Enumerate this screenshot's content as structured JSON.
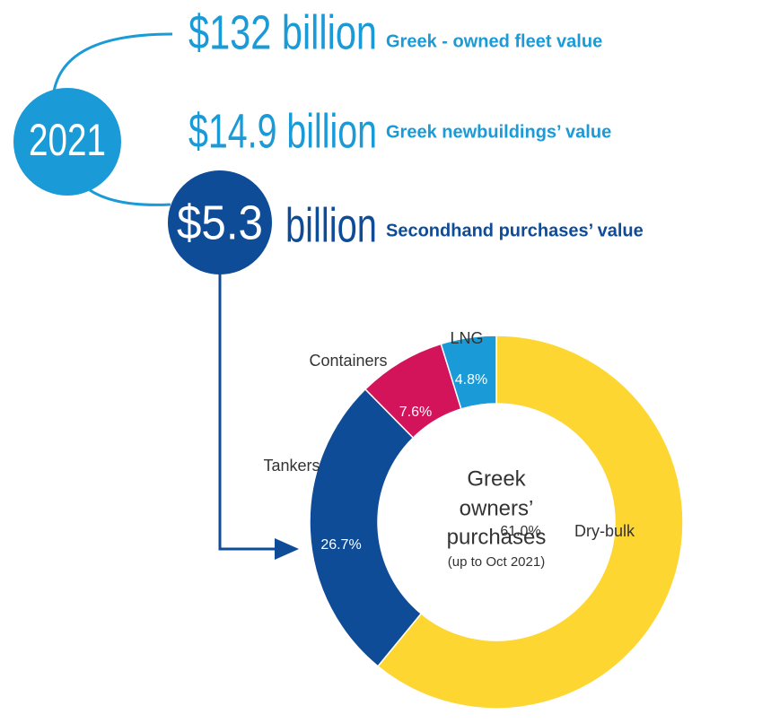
{
  "highlights": {
    "year": "2021",
    "items": [
      {
        "amount": "$132 billion",
        "label": "Greek - owned fleet value"
      },
      {
        "amount": "$14.9 billion",
        "label": "Greek newbuildings’ value"
      },
      {
        "amount": "$5.3",
        "unit": "billion",
        "label": "Secondhand purchases’ value"
      }
    ]
  },
  "chart_data": {
    "type": "pie",
    "donut": true,
    "center_text": [
      "Greek",
      "owners’",
      "purchases"
    ],
    "center_note": "(up to Oct 2021)",
    "categories": [
      "Dry-bulk",
      "Tankers",
      "Containers",
      "LNG"
    ],
    "values": [
      61.0,
      26.7,
      7.6,
      4.8
    ],
    "value_labels": [
      "61.0%",
      "26.7%",
      "7.6%",
      "4.8%"
    ],
    "colors": [
      "#fdd631",
      "#0f4c98",
      "#d3145a",
      "#1a9ad6"
    ]
  }
}
